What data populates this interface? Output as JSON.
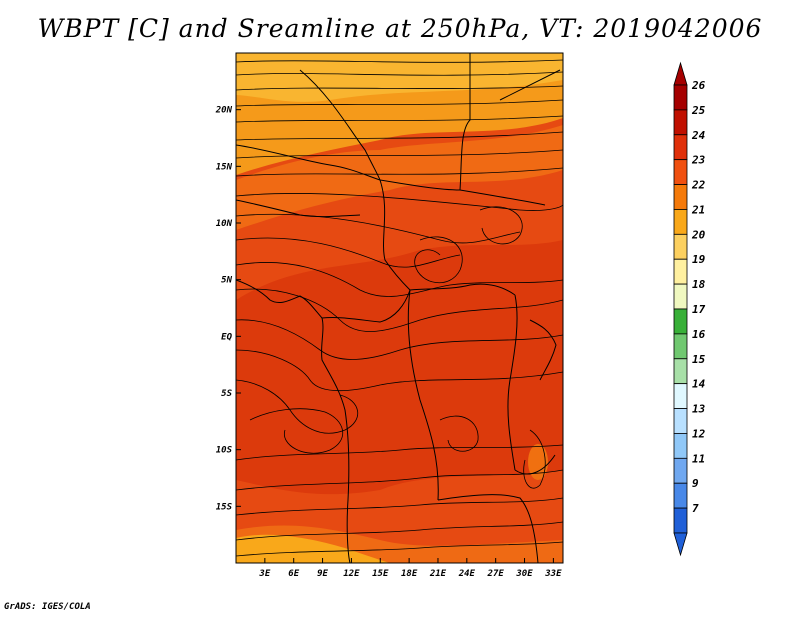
{
  "title": "WBPT [C] and Sreamline at 250hPa, VT: 2019042006",
  "credit": "GrADS: IGES/COLA",
  "map": {
    "lat_labels": [
      "20N",
      "15N",
      "10N",
      "5N",
      "EQ",
      "5S",
      "10S",
      "15S"
    ],
    "lat_values": [
      20,
      15,
      10,
      5,
      0,
      -5,
      -10,
      -15
    ],
    "lon_labels": [
      "3E",
      "6E",
      "9E",
      "12E",
      "15E",
      "18E",
      "21E",
      "24E",
      "27E",
      "30E",
      "33E"
    ],
    "lon_values": [
      3,
      6,
      9,
      12,
      15,
      18,
      21,
      24,
      27,
      30,
      33
    ],
    "lon_range": [
      0,
      34
    ],
    "lat_range": [
      -20,
      25
    ],
    "fill_base_color": "#e8470f"
  },
  "colorbar": {
    "labels": [
      "26",
      "25",
      "24",
      "23",
      "22",
      "21",
      "20",
      "19",
      "18",
      "17",
      "16",
      "15",
      "14",
      "13",
      "12",
      "11",
      "9",
      "7"
    ],
    "colors": [
      "#a50000",
      "#c01000",
      "#e0300a",
      "#f05010",
      "#f57a0a",
      "#f9a81a",
      "#fcd060",
      "#fff0a0",
      "#f0f8c0",
      "#38b038",
      "#70c870",
      "#a8e0a8",
      "#e0f8ff",
      "#b8e0ff",
      "#90c8f8",
      "#70a8f0",
      "#4888e8",
      "#2060d8"
    ],
    "top_arrow_color": "#a50000",
    "bottom_arrow_color": "#2060d8"
  }
}
